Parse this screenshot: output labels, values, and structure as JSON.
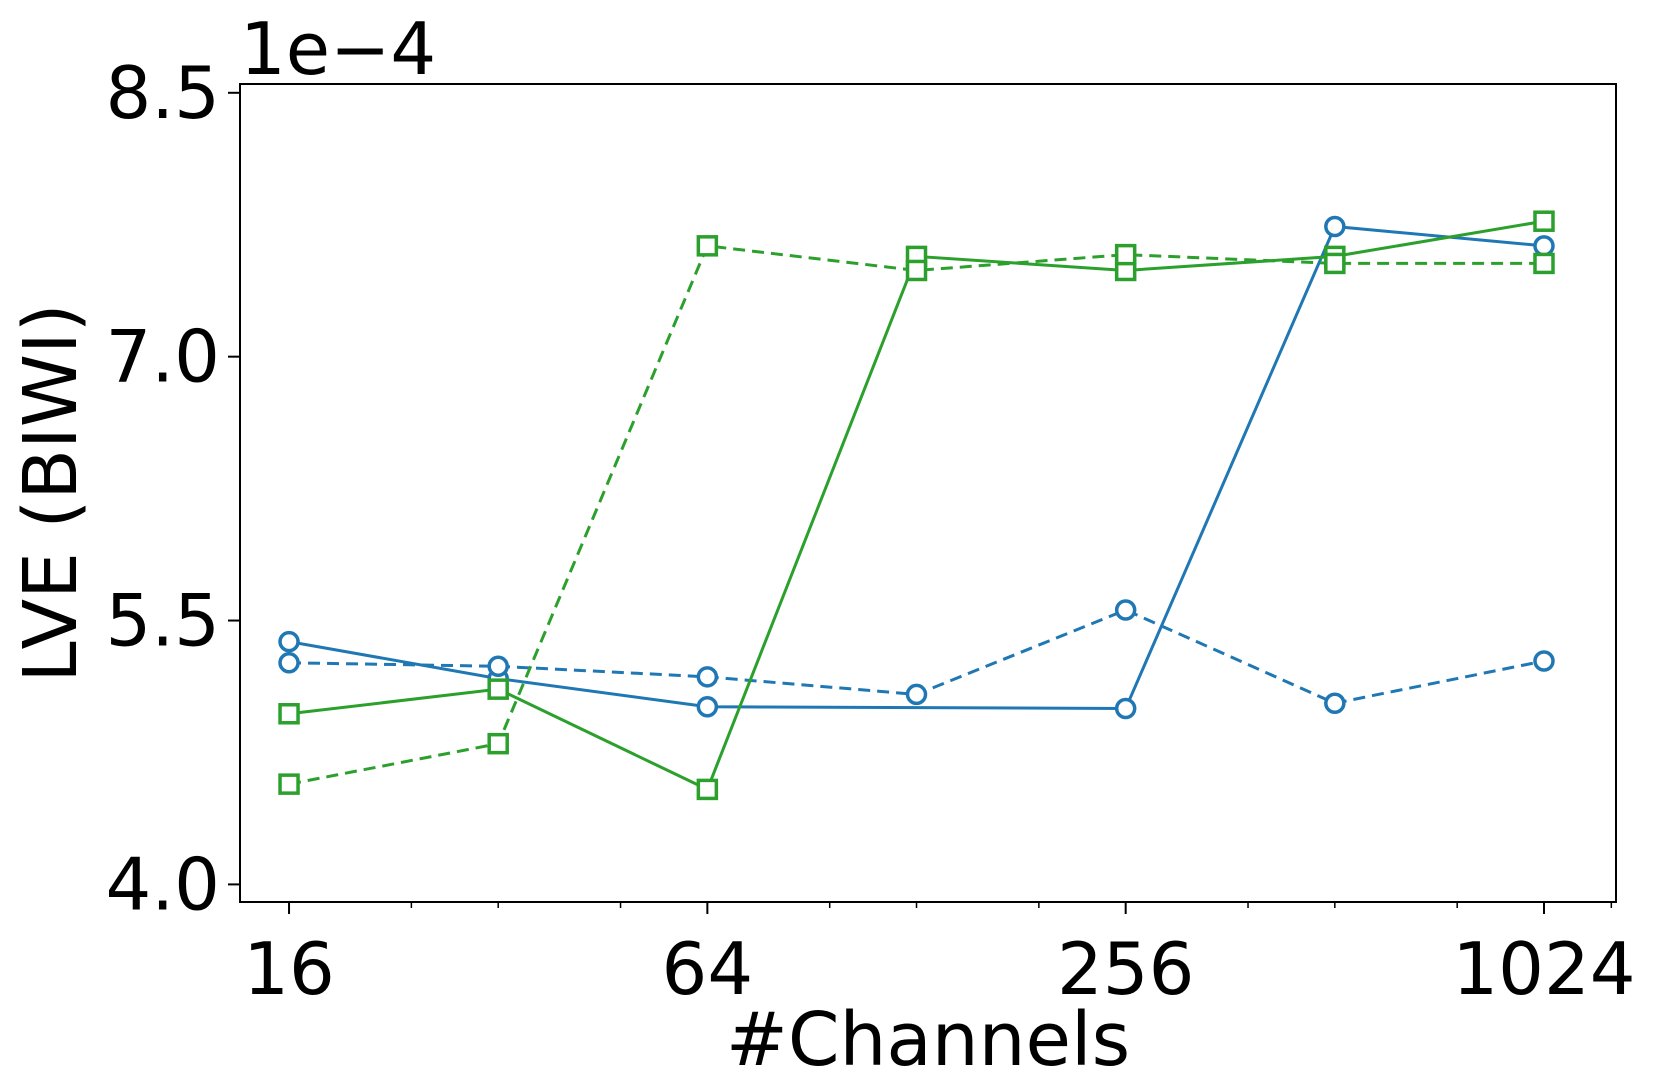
{
  "chart_data": {
    "type": "line",
    "xlabel": "#Channels",
    "ylabel": "LVE (BIWI)",
    "offset_label": "1e−4",
    "x_scale": "log2",
    "xlim": [
      13.6,
      1300
    ],
    "ylim": [
      3.9,
      8.55
    ],
    "x_ticks": [
      16,
      64,
      256,
      1024
    ],
    "x_tick_labels": [
      "16",
      "64",
      "256",
      "1024"
    ],
    "y_ticks": [
      4.0,
      5.5,
      7.0,
      8.5
    ],
    "y_tick_labels": [
      "4.0",
      "5.5",
      "7.0",
      "8.5"
    ],
    "grid": false,
    "legend": "none",
    "series": [
      {
        "color": "#1f77b4",
        "linestyle": "solid",
        "marker": "circle",
        "x": [
          16,
          32,
          64,
          256,
          512,
          1024
        ],
        "y": [
          5.38,
          5.17,
          5.01,
          5.0,
          7.74,
          7.63
        ]
      },
      {
        "color": "#1f77b4",
        "linestyle": "dashed",
        "marker": "circle",
        "x": [
          16,
          32,
          64,
          128,
          256,
          512,
          1024
        ],
        "y": [
          5.26,
          5.24,
          5.18,
          5.08,
          5.56,
          5.03,
          5.27
        ]
      },
      {
        "color": "#2ca02c",
        "linestyle": "solid",
        "marker": "square",
        "x": [
          16,
          32,
          64,
          128,
          256,
          512,
          1024
        ],
        "y": [
          4.97,
          5.11,
          4.54,
          7.57,
          7.49,
          7.57,
          7.77
        ]
      },
      {
        "color": "#2ca02c",
        "linestyle": "dashed",
        "marker": "square",
        "x": [
          16,
          32,
          64,
          128,
          256,
          512,
          1024
        ],
        "y": [
          4.57,
          4.8,
          7.63,
          7.49,
          7.58,
          7.53,
          7.53
        ]
      }
    ]
  }
}
